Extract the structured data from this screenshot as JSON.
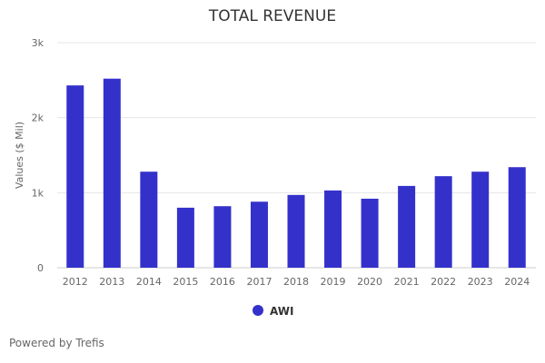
{
  "chart_data": {
    "type": "bar",
    "title": "TOTAL REVENUE",
    "xlabel": "",
    "ylabel": "Values ($ Mil)",
    "categories": [
      "2012",
      "2013",
      "2014",
      "2015",
      "2016",
      "2017",
      "2018",
      "2019",
      "2020",
      "2021",
      "2022",
      "2023",
      "2024"
    ],
    "series": [
      {
        "name": "AWI",
        "values": [
          2430,
          2520,
          1280,
          800,
          820,
          880,
          970,
          1030,
          920,
          1090,
          1220,
          1280,
          1340
        ],
        "color": "#3431cb"
      }
    ],
    "ylim": [
      0,
      3000
    ],
    "yticks": [
      0,
      1000,
      2000,
      3000
    ],
    "ytick_labels": [
      "0",
      "1k",
      "2k",
      "3k"
    ],
    "grid": true,
    "legend": "bottom-center"
  },
  "footer": "Powered by Trefis"
}
